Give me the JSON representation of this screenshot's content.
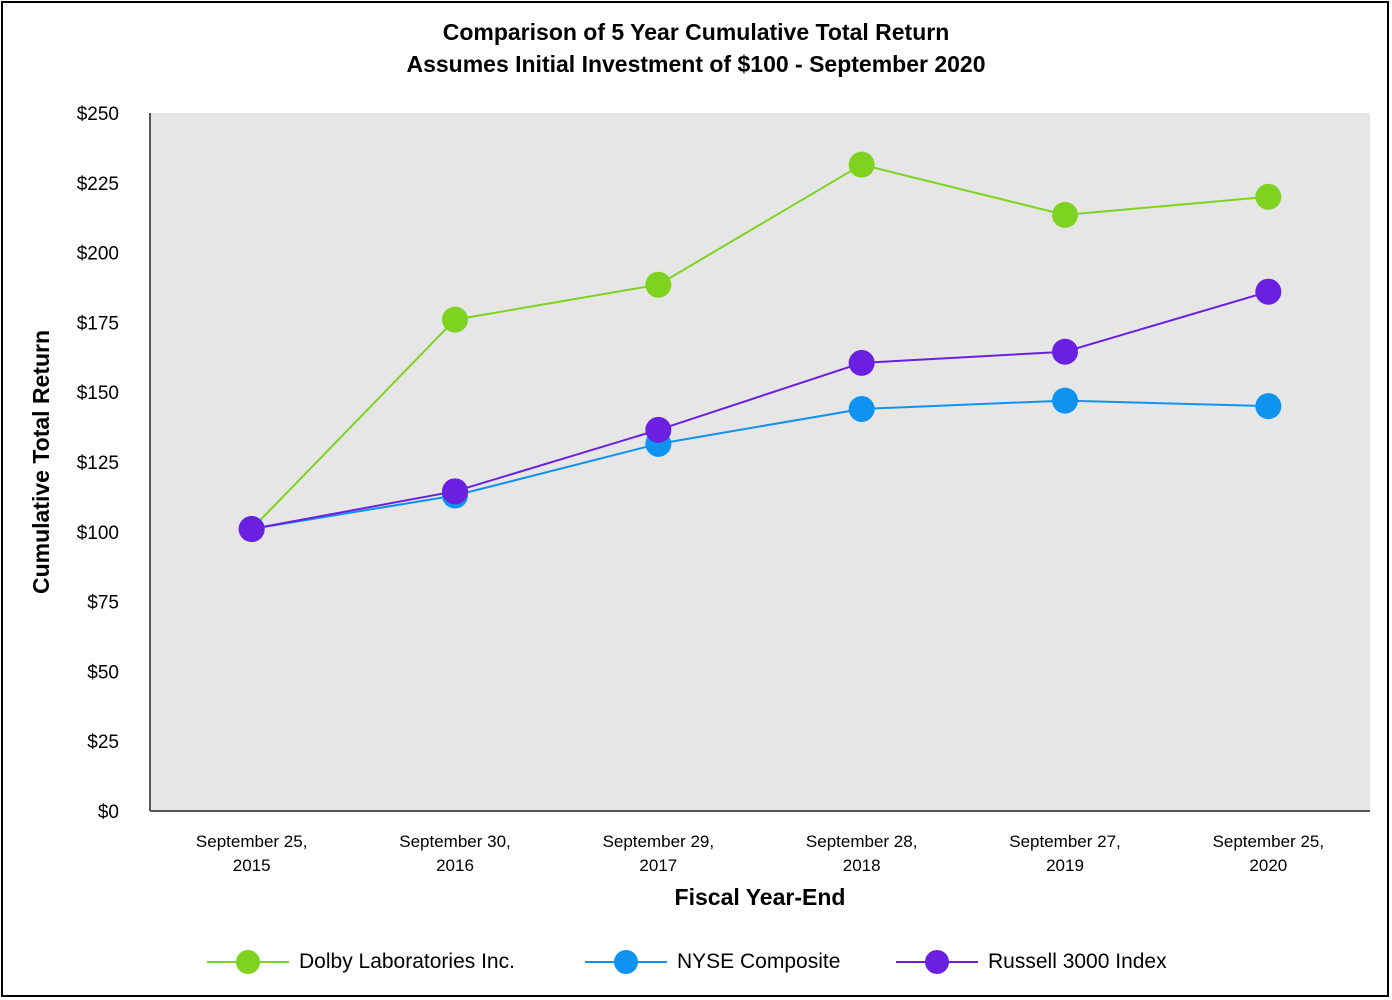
{
  "chart_data": {
    "type": "line",
    "title": "Comparison of 5 Year Cumulative Total Return",
    "subtitle": "Assumes Initial Investment of $100 - September 2020",
    "xlabel": "Fiscal Year-End",
    "ylabel": "Cumulative Total Return",
    "categories": [
      [
        "September 25,",
        "2015"
      ],
      [
        "September 30,",
        "2016"
      ],
      [
        "September 29,",
        "2017"
      ],
      [
        "September 28,",
        "2018"
      ],
      [
        "September 27,",
        "2019"
      ],
      [
        "September 25,",
        "2020"
      ]
    ],
    "ylim": [
      0,
      250
    ],
    "yticks": [
      0,
      25,
      50,
      75,
      100,
      125,
      150,
      175,
      200,
      225,
      250
    ],
    "ytick_labels": [
      "$0",
      "$25",
      "$50",
      "$75",
      "$100",
      "$125",
      "$150",
      "$175",
      "$200",
      "$225",
      "$250"
    ],
    "grid": false,
    "legend_position": "bottom",
    "series": [
      {
        "name": "Dolby Laboratories Inc.",
        "color": "#7ed321",
        "values": [
          101,
          176,
          188.5,
          231.5,
          213.5,
          220
        ]
      },
      {
        "name": "NYSE Composite",
        "color": "#0f93f0",
        "values": [
          101,
          113,
          131.5,
          144,
          147,
          145
        ]
      },
      {
        "name": "Russell 3000 Index",
        "color": "#6b1fe0",
        "values": [
          101,
          114.5,
          136.5,
          160.5,
          164.5,
          186
        ]
      }
    ],
    "plot_background": "#e6e6e6"
  }
}
